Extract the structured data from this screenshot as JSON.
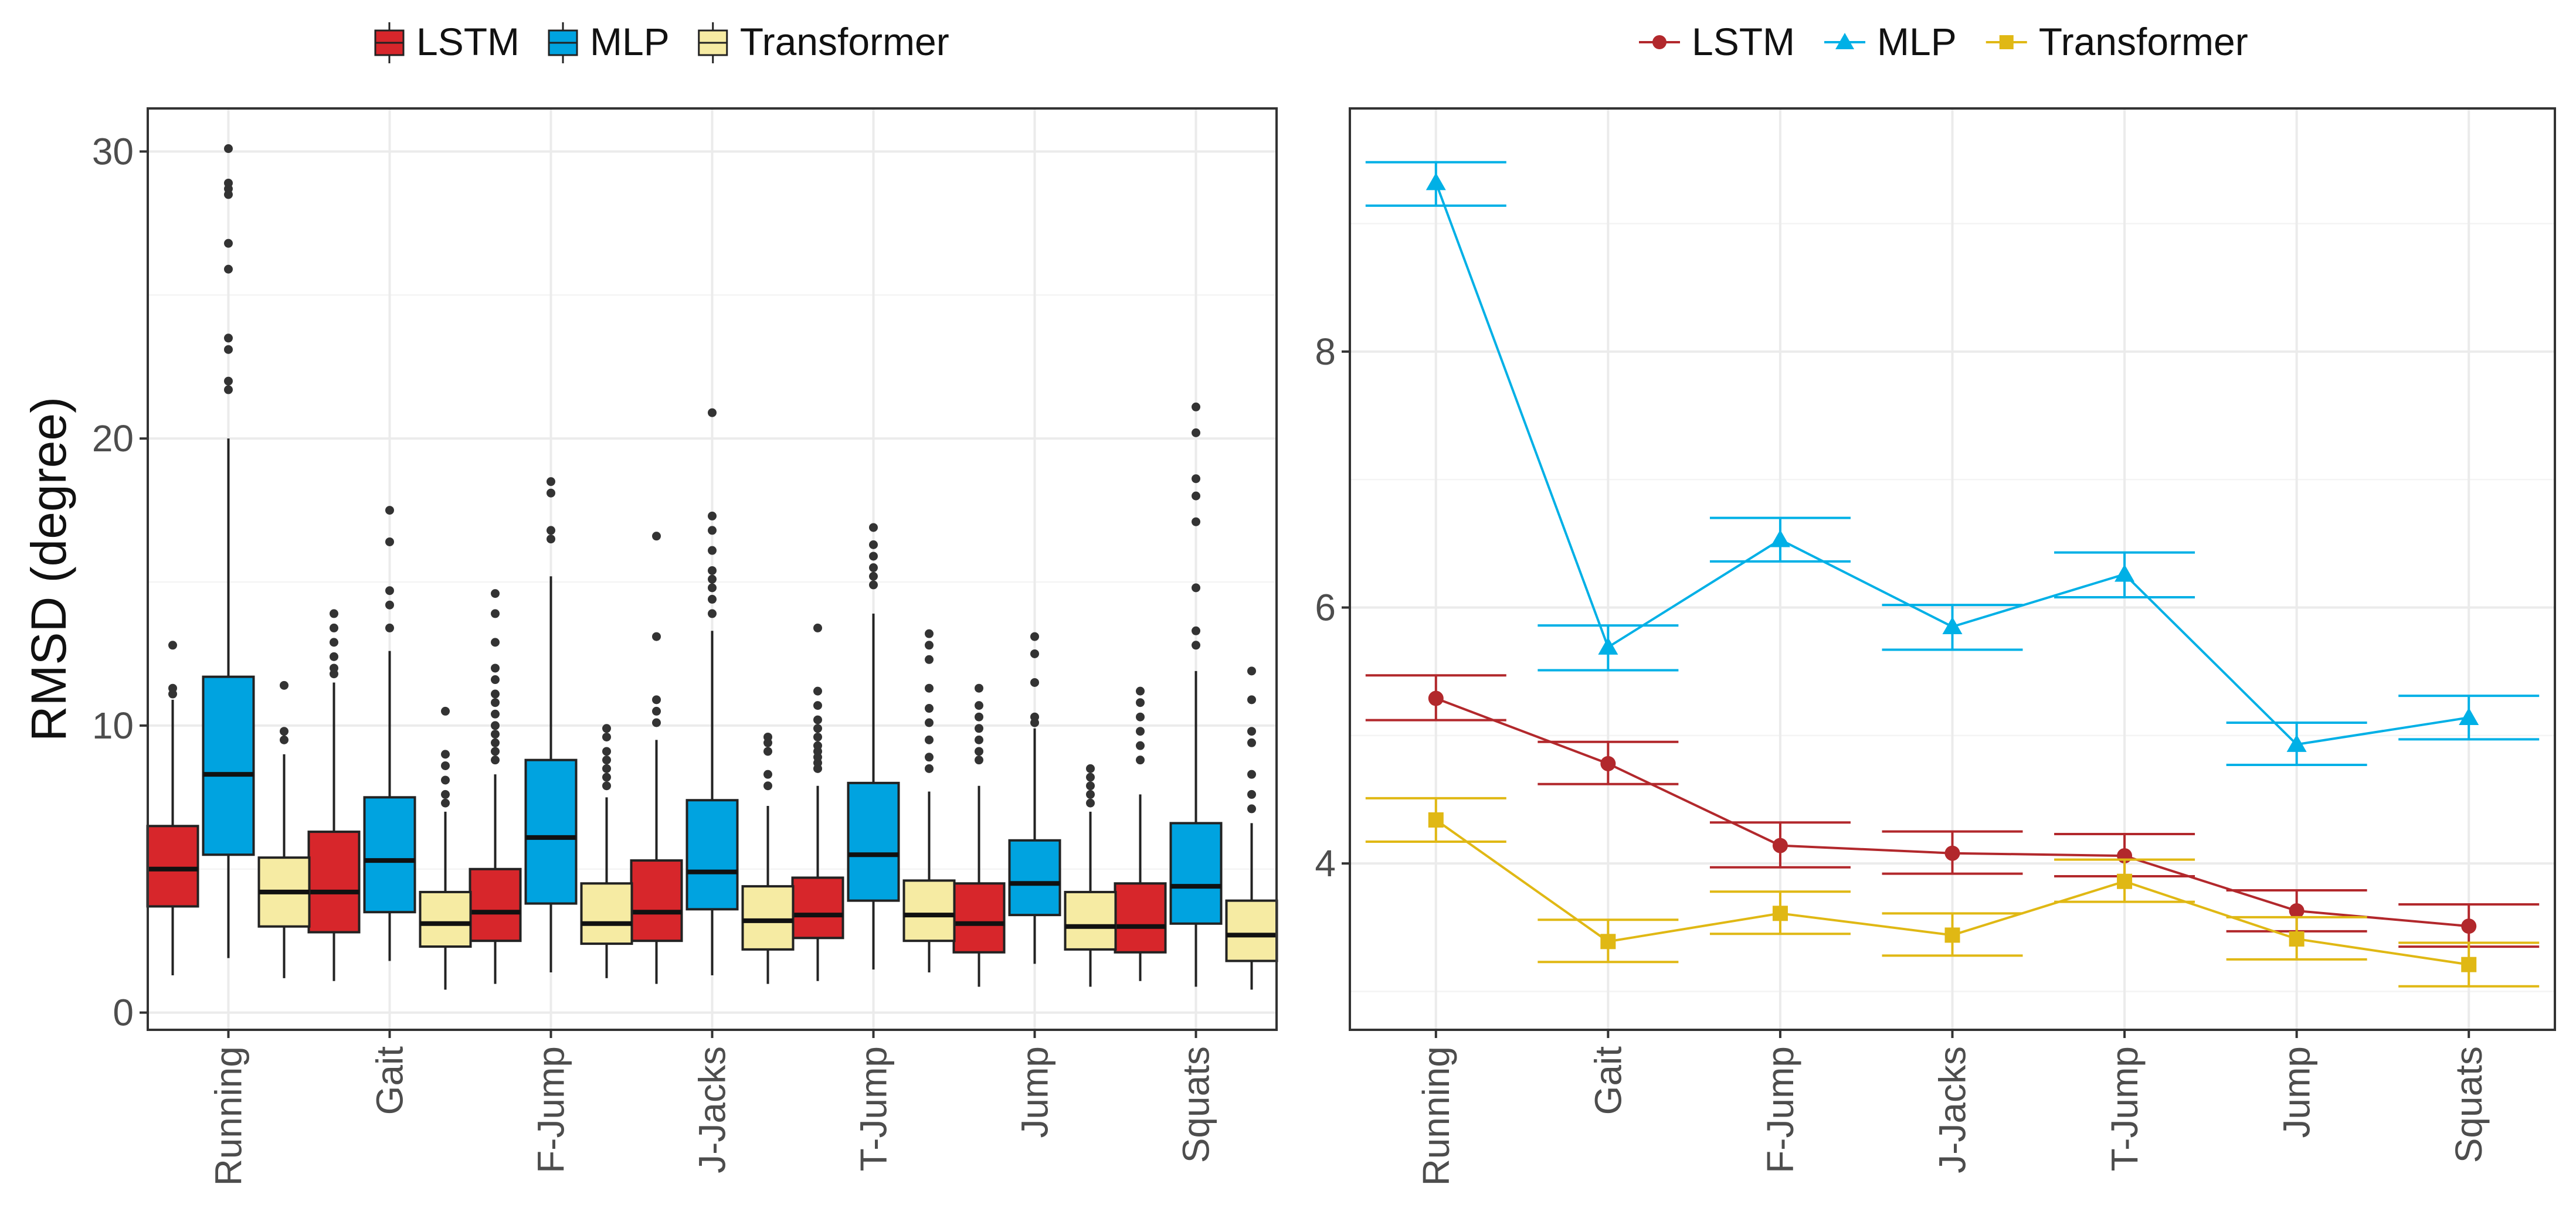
{
  "chart_data": [
    {
      "type": "boxplot",
      "title": "",
      "xlabel": "",
      "ylabel": "RMSD (degree)",
      "ylim": [
        -0.6,
        31.5
      ],
      "yticks": [
        0,
        10,
        20,
        30
      ],
      "grid": true,
      "legend_position": "top",
      "categories": [
        "Running",
        "Gait",
        "F-Jump",
        "J-Jacks",
        "T-Jump",
        "Jump",
        "Squats"
      ],
      "series": [
        {
          "name": "LSTM",
          "color": "#d7262b",
          "boxes": [
            {
              "whislo": 1.3,
              "q1": 3.7,
              "med": 5.0,
              "q3": 6.5,
              "whishi": 10.9,
              "fliers": [
                11.1,
                11.3,
                12.8
              ]
            },
            {
              "whislo": 1.1,
              "q1": 2.8,
              "med": 4.2,
              "q3": 6.3,
              "whishi": 11.5,
              "fliers": [
                11.8,
                12.0,
                12.4,
                12.9,
                13.4,
                13.9
              ]
            },
            {
              "whislo": 1.0,
              "q1": 2.5,
              "med": 3.5,
              "q3": 5.0,
              "whishi": 8.3,
              "fliers": [
                8.8,
                9.1,
                9.4,
                9.7,
                10.0,
                10.4,
                10.8,
                11.1,
                11.6,
                12.0,
                12.9,
                13.9,
                14.6
              ]
            },
            {
              "whislo": 1.0,
              "q1": 2.5,
              "med": 3.5,
              "q3": 5.3,
              "whishi": 9.5,
              "fliers": [
                10.1,
                10.5,
                10.9,
                13.1,
                16.6
              ]
            },
            {
              "whislo": 1.1,
              "q1": 2.6,
              "med": 3.4,
              "q3": 4.7,
              "whishi": 7.9,
              "fliers": [
                8.5,
                8.7,
                8.9,
                9.1,
                9.3,
                9.6,
                9.9,
                10.2,
                10.7,
                11.2,
                13.4
              ]
            },
            {
              "whislo": 0.9,
              "q1": 2.1,
              "med": 3.1,
              "q3": 4.5,
              "whishi": 7.9,
              "fliers": [
                8.8,
                9.1,
                9.5,
                9.9,
                10.3,
                10.7,
                11.3
              ]
            },
            {
              "whislo": 1.1,
              "q1": 2.1,
              "med": 3.0,
              "q3": 4.5,
              "whishi": 7.6,
              "fliers": [
                8.8,
                9.3,
                9.8,
                10.3,
                10.8,
                11.2
              ]
            }
          ]
        },
        {
          "name": "MLP",
          "color": "#00a3e0",
          "boxes": [
            {
              "whislo": 1.9,
              "q1": 5.5,
              "med": 8.3,
              "q3": 11.7,
              "whishi": 20.0,
              "fliers": [
                21.7,
                22.0,
                23.1,
                23.5,
                25.9,
                26.8,
                28.5,
                28.7,
                28.9,
                30.1
              ]
            },
            {
              "whislo": 1.8,
              "q1": 3.5,
              "med": 5.3,
              "q3": 7.5,
              "whishi": 12.6,
              "fliers": [
                13.4,
                14.2,
                14.7,
                16.4,
                17.5
              ]
            },
            {
              "whislo": 1.4,
              "q1": 3.8,
              "med": 6.1,
              "q3": 8.8,
              "whishi": 15.2,
              "fliers": [
                16.5,
                16.8,
                18.1,
                18.5
              ]
            },
            {
              "whislo": 1.3,
              "q1": 3.6,
              "med": 4.9,
              "q3": 7.4,
              "whishi": 13.3,
              "fliers": [
                13.9,
                14.4,
                14.8,
                15.1,
                15.4,
                16.1,
                16.8,
                17.3,
                20.9
              ]
            },
            {
              "whislo": 1.5,
              "q1": 3.9,
              "med": 5.5,
              "q3": 8.0,
              "whishi": 13.9,
              "fliers": [
                14.9,
                15.2,
                15.5,
                15.9,
                16.3,
                16.9
              ]
            },
            {
              "whislo": 1.7,
              "q1": 3.4,
              "med": 4.5,
              "q3": 6.0,
              "whishi": 9.9,
              "fliers": [
                10.1,
                10.3,
                11.5,
                12.5,
                13.1
              ]
            },
            {
              "whislo": 0.9,
              "q1": 3.1,
              "med": 4.4,
              "q3": 6.6,
              "whishi": 11.9,
              "fliers": [
                12.8,
                13.3,
                14.8,
                17.1,
                18.0,
                18.6,
                20.2,
                21.1
              ]
            }
          ]
        },
        {
          "name": "Transformer",
          "color": "#f6eba3",
          "boxes": [
            {
              "whislo": 1.2,
              "q1": 3.0,
              "med": 4.2,
              "q3": 5.4,
              "whishi": 9.0,
              "fliers": [
                9.5,
                9.8,
                11.4
              ]
            },
            {
              "whislo": 0.8,
              "q1": 2.3,
              "med": 3.1,
              "q3": 4.2,
              "whishi": 7.0,
              "fliers": [
                7.3,
                7.6,
                8.1,
                8.6,
                9.0,
                10.5
              ]
            },
            {
              "whislo": 1.2,
              "q1": 2.4,
              "med": 3.1,
              "q3": 4.5,
              "whishi": 7.5,
              "fliers": [
                7.9,
                8.2,
                8.5,
                8.8,
                9.1,
                9.6,
                9.9
              ]
            },
            {
              "whislo": 1.0,
              "q1": 2.2,
              "med": 3.2,
              "q3": 4.4,
              "whishi": 7.2,
              "fliers": [
                7.9,
                8.3,
                9.1,
                9.4,
                9.6
              ]
            },
            {
              "whislo": 1.4,
              "q1": 2.5,
              "med": 3.4,
              "q3": 4.6,
              "whishi": 7.7,
              "fliers": [
                8.5,
                8.9,
                9.5,
                10.1,
                10.6,
                11.3,
                12.3,
                12.8,
                13.2
              ]
            },
            {
              "whislo": 0.9,
              "q1": 2.2,
              "med": 3.0,
              "q3": 4.2,
              "whishi": 7.0,
              "fliers": [
                7.3,
                7.6,
                7.9,
                8.2,
                8.5
              ]
            },
            {
              "whislo": 0.8,
              "q1": 1.8,
              "med": 2.7,
              "q3": 3.9,
              "whishi": 6.6,
              "fliers": [
                7.1,
                7.6,
                8.3,
                9.4,
                9.8,
                10.9,
                11.9
              ]
            }
          ]
        }
      ]
    },
    {
      "type": "line",
      "title": "",
      "xlabel": "",
      "ylabel": "",
      "ylim": [
        2.7,
        9.9
      ],
      "yticks": [
        4,
        6,
        8
      ],
      "grid": true,
      "legend_position": "top",
      "categories": [
        "Running",
        "Gait",
        "F-Jump",
        "J-Jacks",
        "T-Jump",
        "Jump",
        "Squats"
      ],
      "series": [
        {
          "name": "LSTM",
          "color": "#b2282c",
          "marker": "circle",
          "values": [
            5.29,
            4.78,
            4.14,
            4.08,
            4.06,
            3.63,
            3.51
          ],
          "err_low": [
            5.12,
            4.62,
            3.97,
            3.92,
            3.9,
            3.47,
            3.35
          ],
          "err_high": [
            5.47,
            4.95,
            4.32,
            4.25,
            4.23,
            3.79,
            3.68
          ]
        },
        {
          "name": "MLP",
          "color": "#00b0e6",
          "marker": "triangle",
          "values": [
            9.32,
            5.69,
            6.53,
            5.85,
            6.26,
            4.93,
            5.14
          ],
          "err_low": [
            9.14,
            5.51,
            6.36,
            5.67,
            6.08,
            4.77,
            4.97
          ],
          "err_high": [
            9.48,
            5.86,
            6.7,
            6.02,
            6.43,
            5.1,
            5.31
          ]
        },
        {
          "name": "Transformer",
          "color": "#e0b814",
          "marker": "square",
          "values": [
            4.34,
            3.39,
            3.61,
            3.44,
            3.86,
            3.41,
            3.21
          ],
          "err_low": [
            4.17,
            3.23,
            3.45,
            3.28,
            3.7,
            3.25,
            3.04
          ],
          "err_high": [
            4.51,
            3.56,
            3.78,
            3.61,
            4.03,
            3.58,
            3.38
          ]
        }
      ]
    }
  ]
}
